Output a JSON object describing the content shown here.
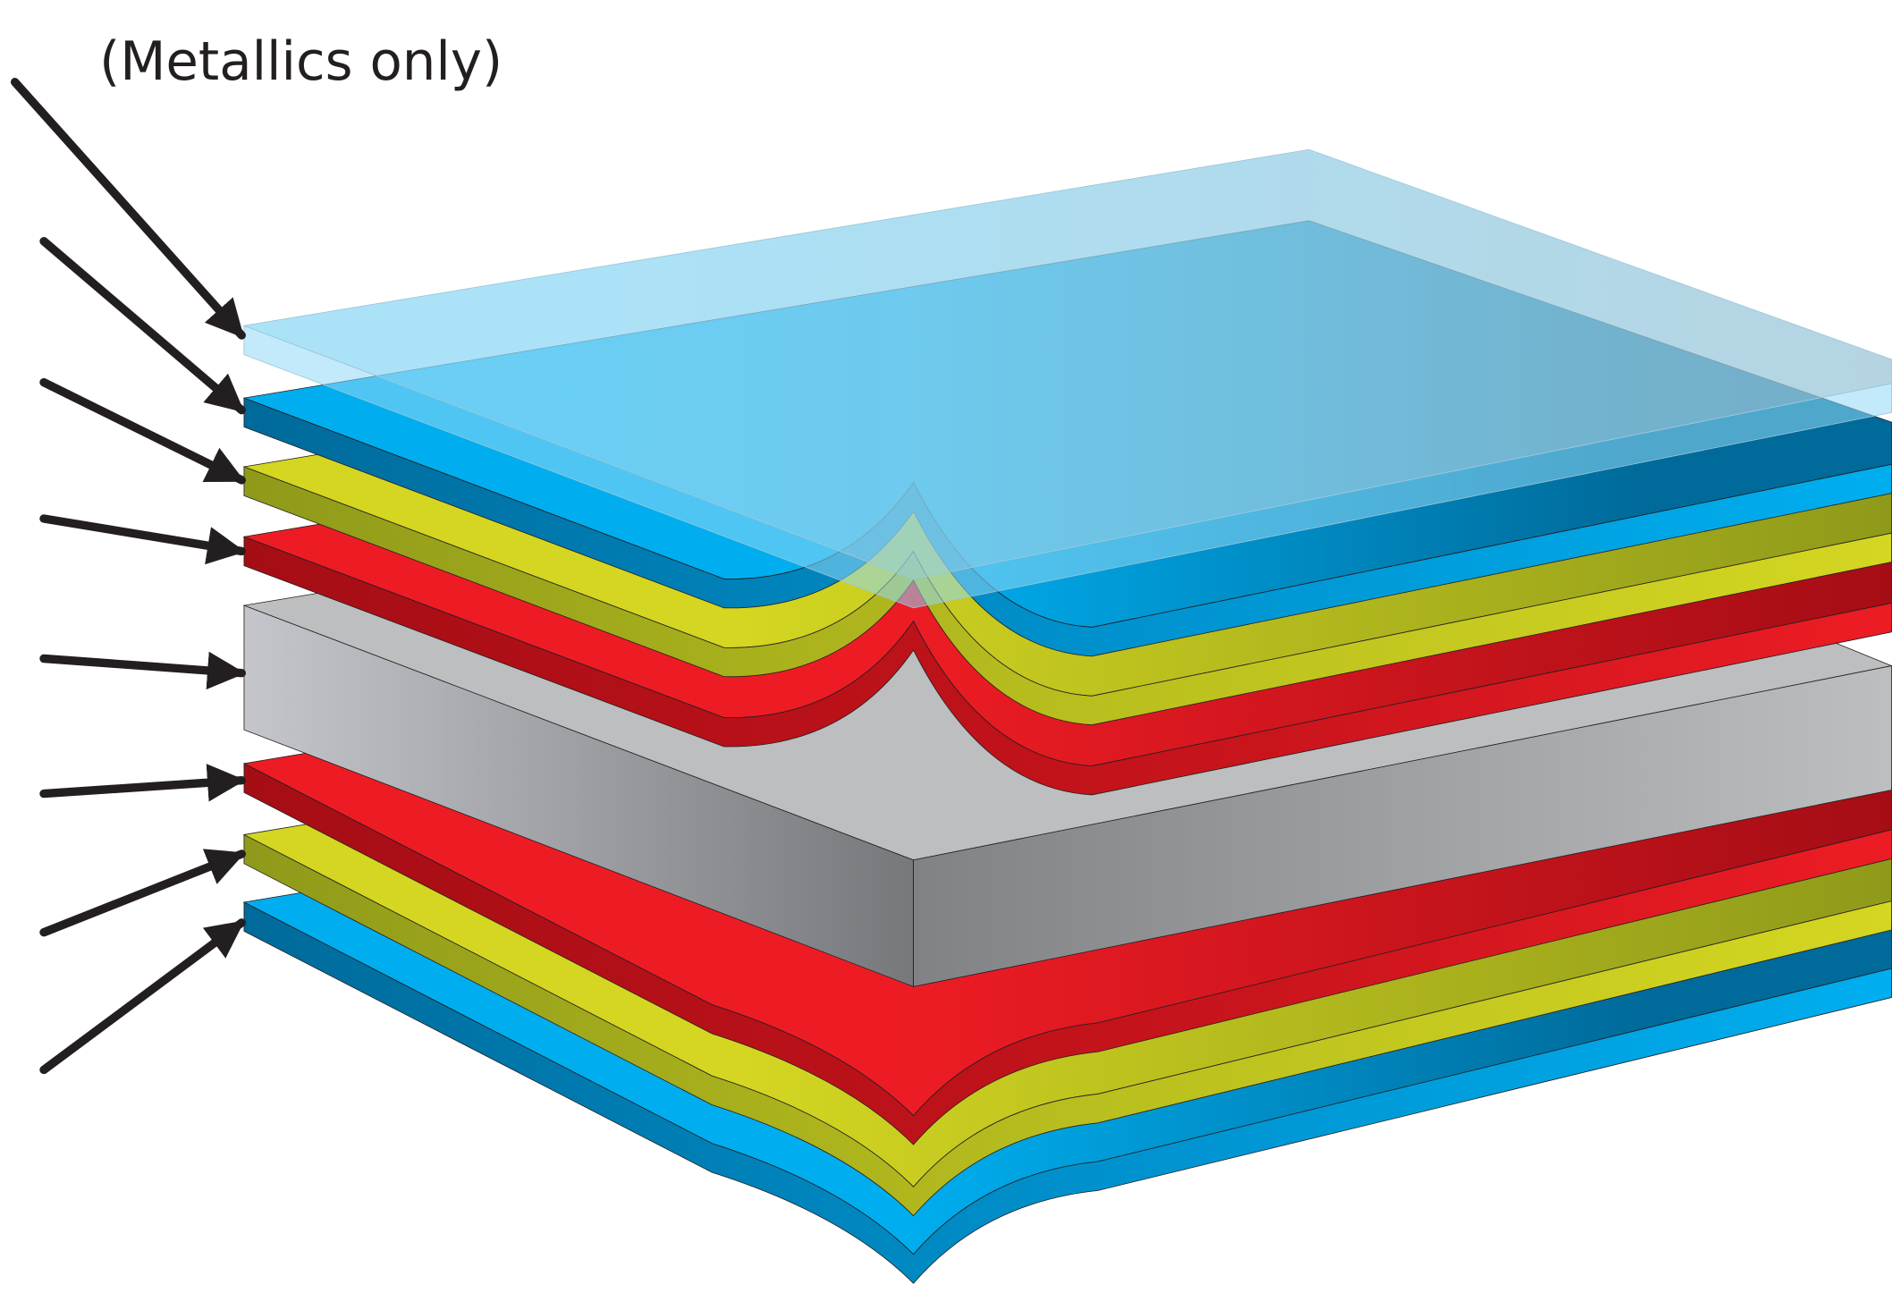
{
  "caption": "(Metallics only)"
}
